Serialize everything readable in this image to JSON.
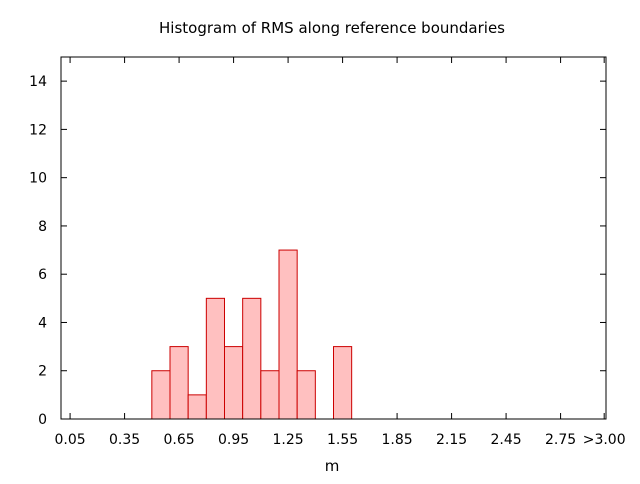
{
  "chart_data": {
    "type": "bar",
    "title": "Histogram of RMS along reference boundaries",
    "xlabel": "m",
    "ylabel": "",
    "xlim": [
      0,
      3.0
    ],
    "ylim": [
      0,
      15
    ],
    "bin_width": 0.1,
    "x_ticks": [
      {
        "value": 0.05,
        "label": "0.05"
      },
      {
        "value": 0.35,
        "label": "0.35"
      },
      {
        "value": 0.65,
        "label": "0.65"
      },
      {
        "value": 0.95,
        "label": "0.95"
      },
      {
        "value": 1.25,
        "label": "1.25"
      },
      {
        "value": 1.55,
        "label": "1.55"
      },
      {
        "value": 1.85,
        "label": "1.85"
      },
      {
        "value": 2.15,
        "label": "2.15"
      },
      {
        "value": 2.45,
        "label": "2.45"
      },
      {
        "value": 2.75,
        "label": "2.75"
      },
      {
        "value": 2.99,
        "label": ">3.00"
      }
    ],
    "y_ticks": [
      0,
      2,
      4,
      6,
      8,
      10,
      12,
      14
    ],
    "bins": [
      {
        "x": 0.55,
        "value": 2
      },
      {
        "x": 0.65,
        "value": 3
      },
      {
        "x": 0.75,
        "value": 1
      },
      {
        "x": 0.85,
        "value": 5
      },
      {
        "x": 0.95,
        "value": 3
      },
      {
        "x": 1.05,
        "value": 5
      },
      {
        "x": 1.15,
        "value": 2
      },
      {
        "x": 1.25,
        "value": 7
      },
      {
        "x": 1.35,
        "value": 2
      },
      {
        "x": 1.55,
        "value": 3
      }
    ],
    "bar_fill": "#ffc0c0",
    "bar_stroke": "#cc0000",
    "grid": false,
    "legend": "none"
  }
}
